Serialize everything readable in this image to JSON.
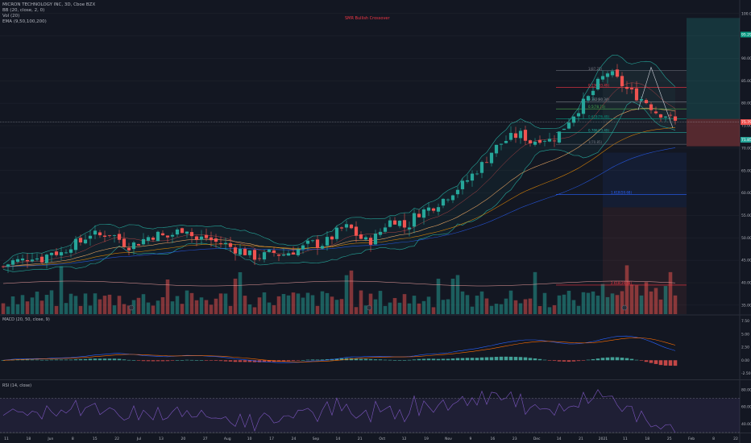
{
  "legend": {
    "symbol": "MICRON TECHNOLOGY INC, 3D, Cboe BZX",
    "lines": [
      "BB (20, close, 2, 0)",
      "Vol (20)",
      "EMA (9,50,100,200)"
    ]
  },
  "signal": "SMR Bullish Crossover",
  "indicators": {
    "macd_label": "MACD (20, 50, close, 9)",
    "rsi_label": "RSI (14, close)"
  },
  "price_axis": {
    "ticks": [
      "100.00",
      "95.00",
      "90.00",
      "85.00",
      "80.00",
      "75.00",
      "70.00",
      "65.00",
      "60.00",
      "55.00",
      "50.00",
      "45.00",
      "40.00",
      "35.00"
    ],
    "current_price": "75.79",
    "target_tag": "95.29",
    "stop_tag": "71.85"
  },
  "macd_axis": {
    "ticks": [
      "7.50",
      "5.00",
      "2.50",
      "0.00",
      "-2.50"
    ]
  },
  "rsi_axis": {
    "ticks": [
      "80.00",
      "60.00",
      "40.00"
    ]
  },
  "x_axis": {
    "ticks": [
      "11",
      "18",
      "Jun",
      "8",
      "15",
      "22",
      "Jul",
      "13",
      "20",
      "27",
      "Aug",
      "10",
      "17",
      "24",
      "Sep",
      "14",
      "21",
      "Oct",
      "12",
      "19",
      "Nov",
      "9",
      "16",
      "23",
      "Dec",
      "14",
      "21",
      "2021",
      "11",
      "18",
      "25",
      "Feb",
      "8",
      "22"
    ]
  },
  "fib_levels": [
    {
      "label": "1(87.25)",
      "color": "#787b86"
    },
    {
      "label": "0.236(83.49)",
      "color": "#f23645"
    },
    {
      "label": "0.382(80.34)",
      "color": "#9598a1"
    },
    {
      "label": "0.5(78.73)",
      "color": "#4caf50"
    },
    {
      "label": "0.618(76.49)",
      "color": "#089981"
    },
    {
      "label": "0.786(73.49)",
      "color": "#26a69a"
    },
    {
      "label": "1(70.85)",
      "color": "#787b86"
    },
    {
      "label": "1.618(59.68)",
      "color": "#2962ff"
    },
    {
      "label": "2.618(39.48)",
      "color": "#f23645"
    }
  ],
  "colors": {
    "bull": "#26a69a",
    "bear": "#ef5350",
    "background": "#131722",
    "bb": "#26a69a",
    "ema50": "#e0a060",
    "ema100": "#ff9800",
    "ema200": "#2962ff",
    "rsi": "#7e57c2"
  },
  "chart_data": {
    "type": "candlestick",
    "title": "MICRON TECHNOLOGY INC, 3D, Cboe BZX",
    "ylim": [
      33,
      103
    ],
    "trend_closes": [
      43.6,
      44.8,
      45.0,
      46.0,
      45.2,
      47.0,
      46.5,
      48.4,
      49.0,
      51.0,
      50.4,
      51.2,
      49.8,
      48.2,
      48.9,
      50.1,
      50.8,
      50.0,
      51.2,
      52.5,
      49.4,
      50.2,
      49.1,
      48.7,
      47.6,
      47.0,
      45.8,
      45.9,
      46.8,
      46.2,
      47.0,
      47.5,
      48.9,
      48.4,
      49.6,
      51.8,
      52.5,
      50.2,
      49.0,
      50.6,
      53.5,
      54.2,
      52.0,
      55.4,
      56.2,
      57.3,
      58.9,
      60.6,
      62.1,
      64.4,
      66.6,
      69.6,
      71.3,
      72.5,
      73.1,
      71.2,
      72.4,
      71.7,
      73.5,
      76.5,
      79.0,
      81.3,
      84.6,
      87.0,
      85.1,
      83.0,
      81.6,
      80.3,
      78.1,
      77.4,
      75.8
    ],
    "series": [
      {
        "name": "EMA 50"
      },
      {
        "name": "EMA 100"
      },
      {
        "name": "EMA 200"
      }
    ]
  }
}
